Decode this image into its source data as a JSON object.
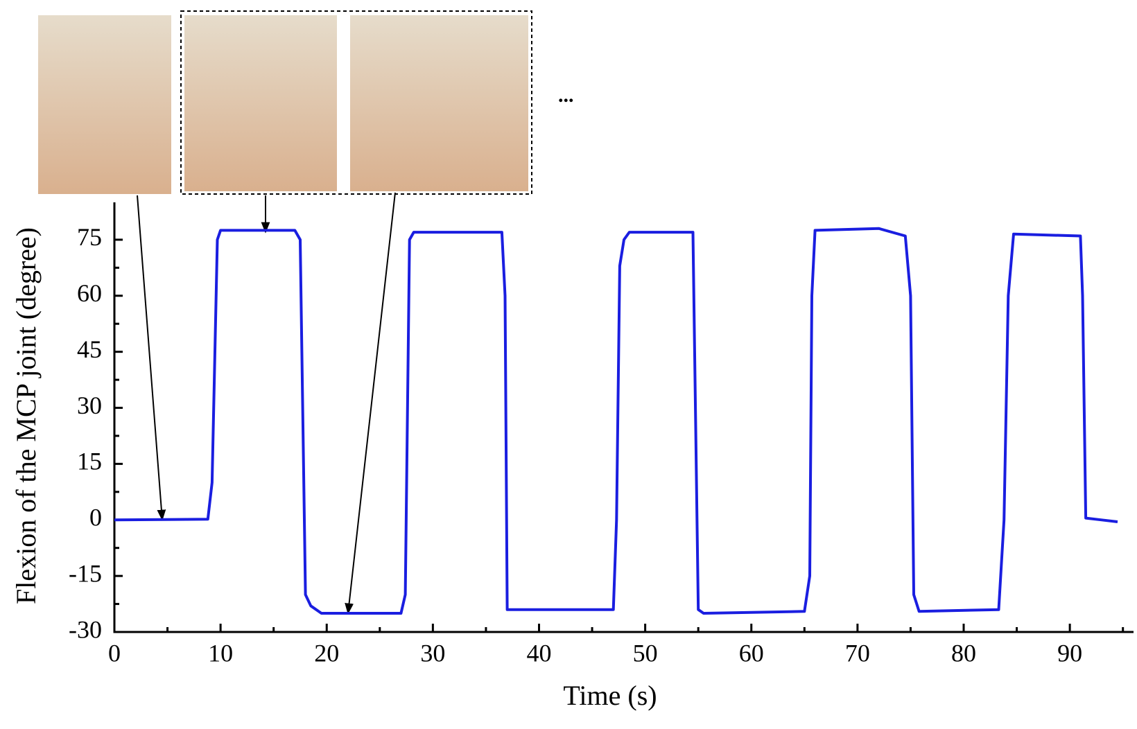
{
  "chart_data": {
    "type": "line",
    "x_label": "Time (s)",
    "y_label": "Flexion of the MCP joint (degree)",
    "annotation": "...",
    "color": "#1a1ee0",
    "x": [
      0,
      8.8,
      9.2,
      9.7,
      10,
      17,
      17.5,
      18,
      18.5,
      19.5,
      27,
      27.4,
      27.8,
      28.2,
      36.5,
      36.8,
      37,
      47,
      47.3,
      47.6,
      48,
      48.5,
      54.5,
      55,
      55.5,
      65,
      65.5,
      65.7,
      66,
      72,
      74.5,
      75,
      75.3,
      75.8,
      83.3,
      83.8,
      84.2,
      84.7,
      91,
      91.2,
      91.5,
      93,
      94.5
    ],
    "values": [
      0,
      0.2,
      10,
      75,
      77.5,
      77.5,
      75,
      -20,
      -23,
      -25,
      -25,
      -20,
      75,
      77,
      77,
      60,
      -24,
      -24,
      0,
      68,
      75,
      77,
      77,
      -24,
      -25,
      -24.5,
      -15,
      60,
      77.5,
      78,
      76,
      60,
      -20,
      -24.5,
      -24,
      0,
      60,
      76.5,
      76,
      60,
      0.5,
      0,
      -0.5
    ],
    "xlim": [
      0,
      96
    ],
    "ylim": [
      -30,
      85
    ],
    "xticks": [
      0,
      10,
      20,
      30,
      40,
      50,
      60,
      70,
      80,
      90
    ],
    "yticks": [
      -30,
      -15,
      0,
      15,
      30,
      45,
      60,
      75
    ]
  }
}
